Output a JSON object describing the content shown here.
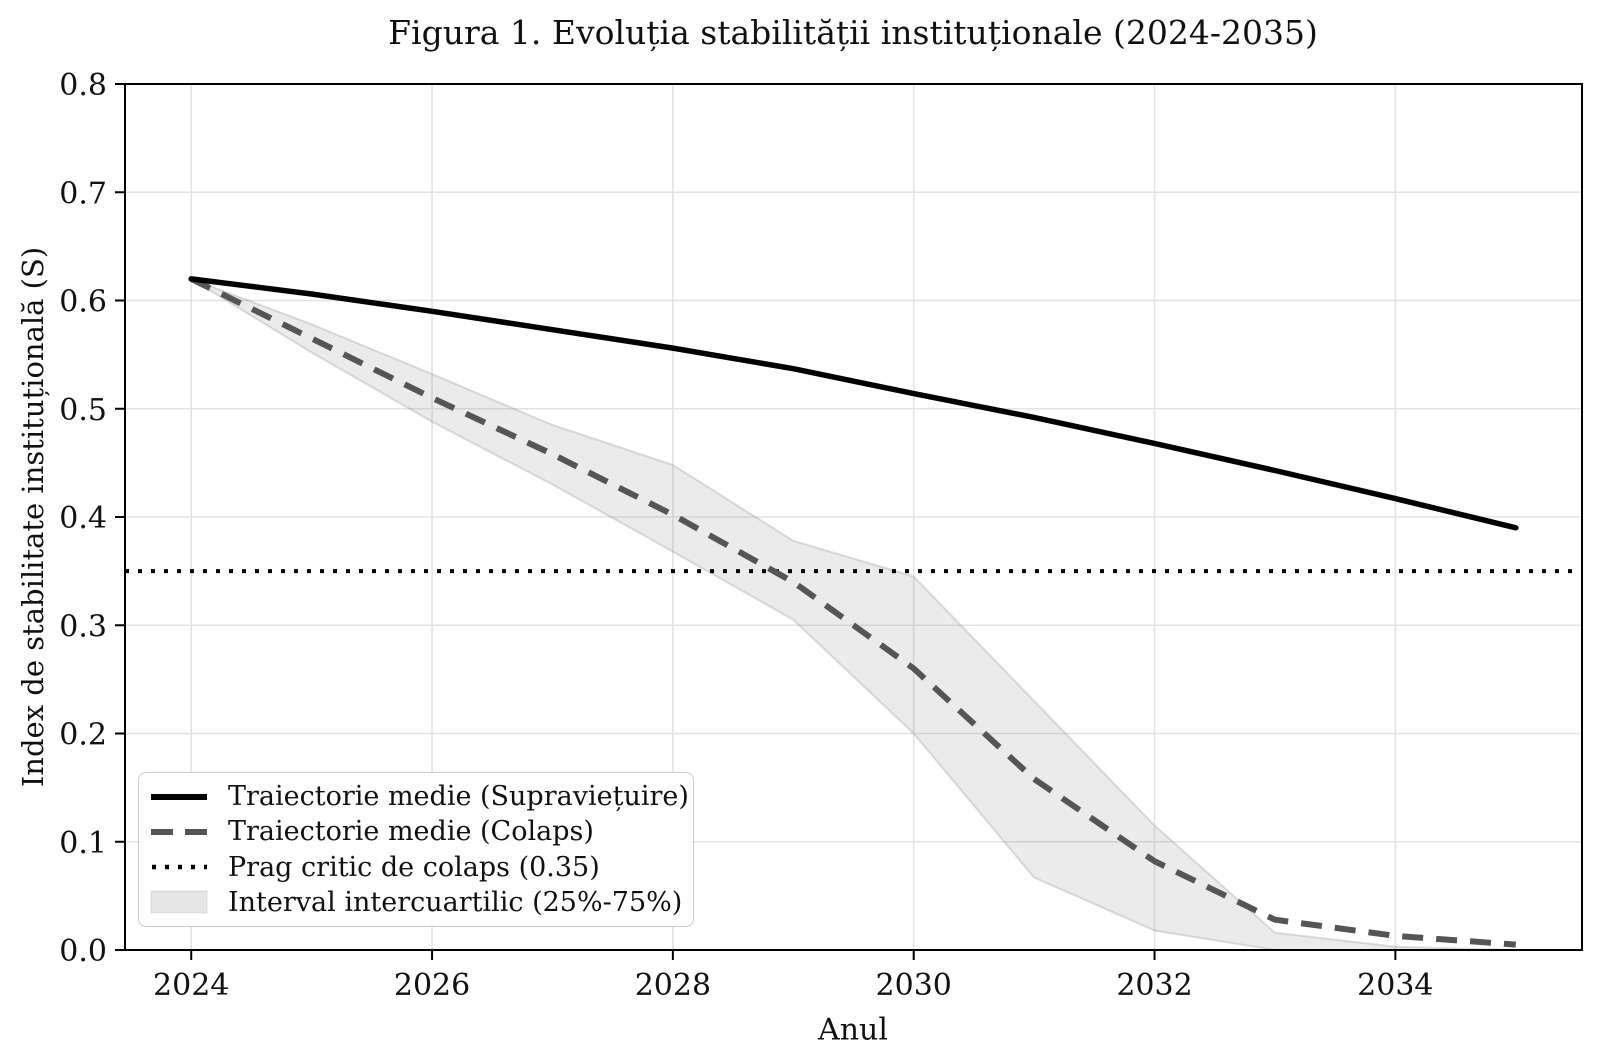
{
  "chart_data": {
    "type": "line",
    "title": "Figura 1. Evoluția stabilității instituționale (2024-2035)",
    "xlabel": "Anul",
    "ylabel": "Index de stabilitate instituțională (S)",
    "x": [
      2024,
      2025,
      2026,
      2027,
      2028,
      2029,
      2030,
      2031,
      2032,
      2033,
      2034,
      2035
    ],
    "xlim": [
      2023.45,
      2035.55
    ],
    "ylim": [
      0.0,
      0.8
    ],
    "grid": true,
    "legend_position": "lower-left",
    "xticks": [
      {
        "v": 2024,
        "label": "2024"
      },
      {
        "v": 2026,
        "label": "2026"
      },
      {
        "v": 2028,
        "label": "2028"
      },
      {
        "v": 2030,
        "label": "2030"
      },
      {
        "v": 2032,
        "label": "2032"
      },
      {
        "v": 2034,
        "label": "2034"
      }
    ],
    "yticks": [
      {
        "v": 0.0,
        "label": "0.0"
      },
      {
        "v": 0.1,
        "label": "0.1"
      },
      {
        "v": 0.2,
        "label": "0.2"
      },
      {
        "v": 0.3,
        "label": "0.3"
      },
      {
        "v": 0.4,
        "label": "0.4"
      },
      {
        "v": 0.5,
        "label": "0.5"
      },
      {
        "v": 0.6,
        "label": "0.6"
      },
      {
        "v": 0.7,
        "label": "0.7"
      },
      {
        "v": 0.8,
        "label": "0.8"
      }
    ],
    "series": [
      {
        "name": "Traiectorie medie (Supraviețuire)",
        "style": "solid",
        "color": "#000000",
        "values": [
          0.62,
          0.606,
          0.59,
          0.573,
          0.556,
          0.537,
          0.514,
          0.492,
          0.468,
          0.443,
          0.417,
          0.39
        ]
      },
      {
        "name": "Traiectorie medie (Colaps)",
        "style": "dashed",
        "color": "#555555",
        "values": [
          0.62,
          0.565,
          0.51,
          0.458,
          0.402,
          0.34,
          0.26,
          0.158,
          0.082,
          0.028,
          0.013,
          0.005
        ]
      },
      {
        "name": "Prag critic de colaps (0.35)",
        "style": "dotted",
        "color": "#000000",
        "threshold": 0.35
      },
      {
        "name": "Interval intercuartilic (25%-75%)",
        "style": "band",
        "color": "#808080",
        "alpha": 0.16,
        "upper": [
          0.62,
          0.578,
          0.532,
          0.485,
          0.448,
          0.378,
          0.345,
          0.23,
          0.115,
          0.016,
          0.003,
          0.0
        ],
        "lower": [
          0.62,
          0.552,
          0.488,
          0.43,
          0.368,
          0.305,
          0.2,
          0.067,
          0.018,
          0.0,
          0.0,
          0.0
        ]
      }
    ],
    "colors": {
      "background": "#ffffff",
      "grid": "#e3e3e3",
      "spine": "#000000",
      "text": "#111111",
      "legend_border": "#cccccc"
    }
  }
}
